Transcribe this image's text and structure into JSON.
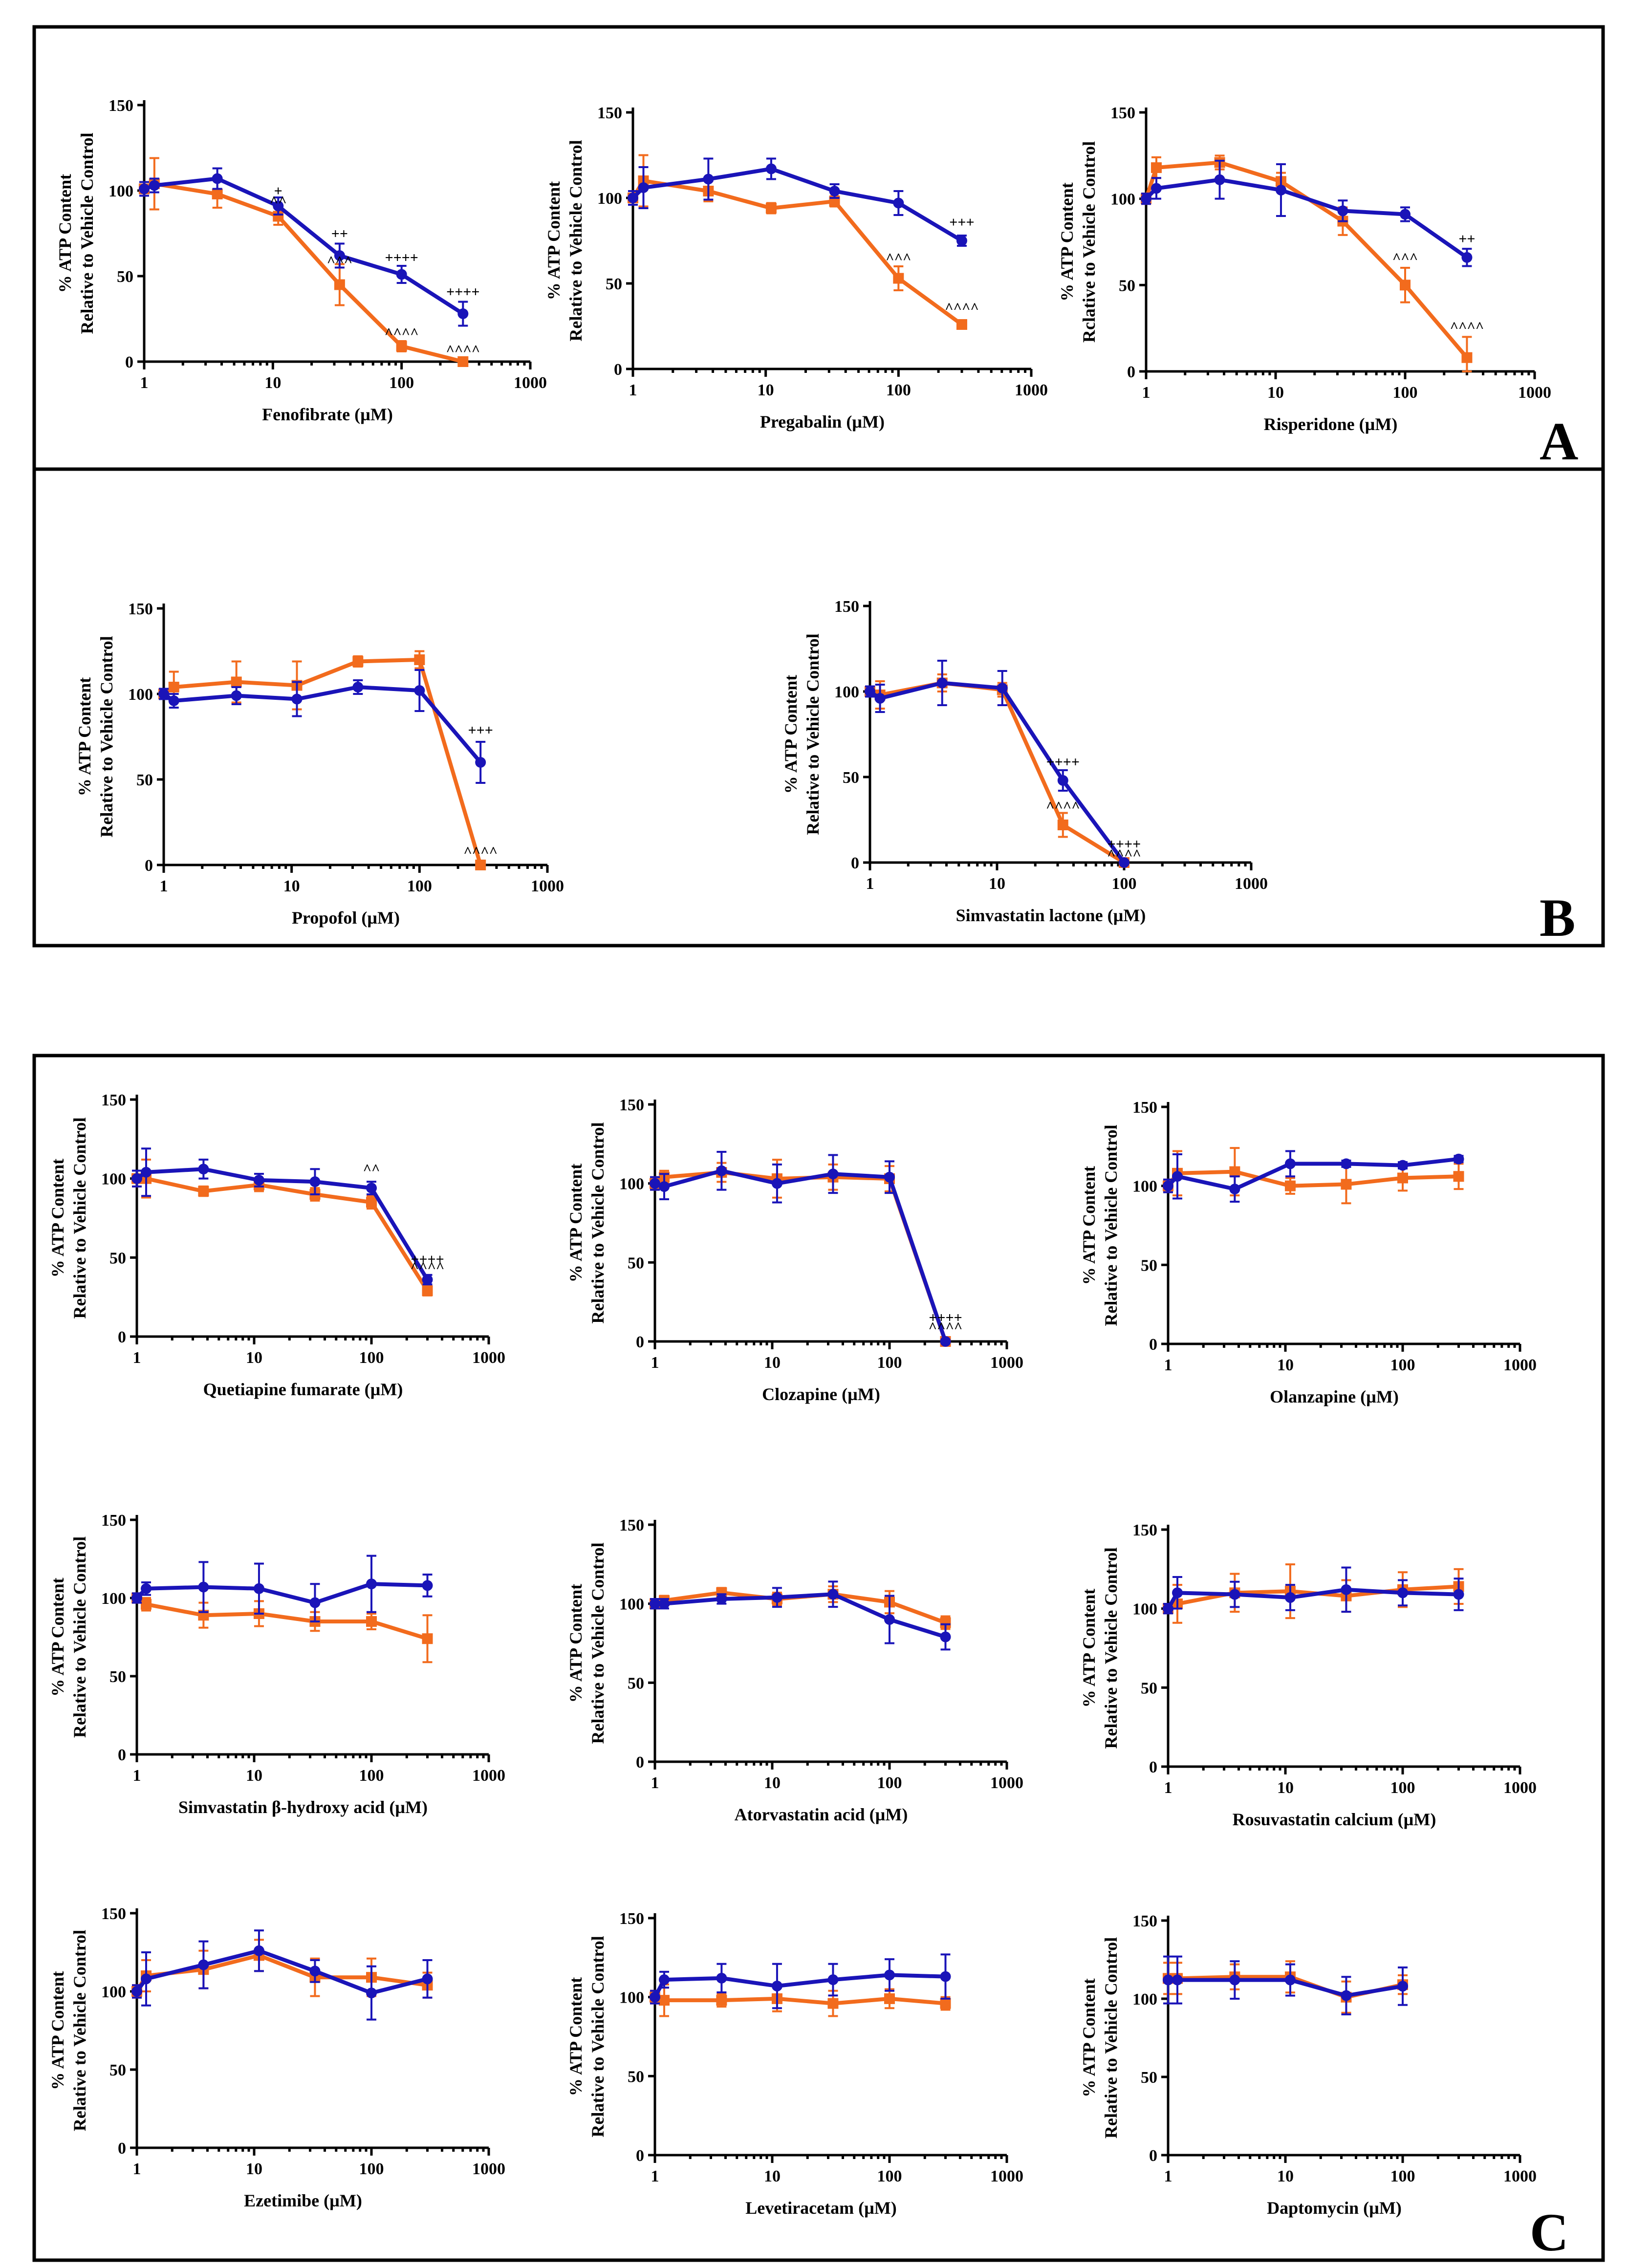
{
  "colors": {
    "blue": "#1a14b8",
    "orange": "#f26b1d",
    "frame": "#000000"
  },
  "panel_labels": {
    "A": "A",
    "B": "B",
    "C": "C"
  },
  "ylabel_line1": "% ATP Content",
  "ylabel_line2": "Relative to Vehicle Control",
  "ylabel_line2_alt": "Rclative to Vehicle Control",
  "chart_data": [
    {
      "type": "line",
      "xscale": "log",
      "xlim": [
        1,
        1000
      ],
      "ylim": [
        0,
        150
      ],
      "yticks": [
        0,
        50,
        100,
        150
      ],
      "xticks": [
        1,
        10,
        100,
        1000
      ],
      "xlabel": "Fenofibrate (µM)",
      "ylabel": "% ATP Content Relative to Vehicle Control",
      "x": [
        1,
        1.2,
        3.7,
        11,
        33,
        100,
        300
      ],
      "series": [
        {
          "name": "blue",
          "values": [
            101,
            103,
            107,
            91,
            62,
            51,
            28
          ],
          "errors": [
            4,
            4,
            6,
            5,
            7,
            5,
            7
          ]
        },
        {
          "name": "orange",
          "values": [
            101,
            104,
            98,
            85,
            45,
            9,
            0
          ],
          "errors": [
            4,
            15,
            8,
            5,
            12,
            3,
            1
          ]
        }
      ],
      "annotations": [
        {
          "x": 11,
          "y": 97,
          "text": "+"
        },
        {
          "x": 11,
          "y": 91,
          "text": "^^"
        },
        {
          "x": 33,
          "y": 72,
          "text": "++"
        },
        {
          "x": 33,
          "y": 56,
          "text": "^^^"
        },
        {
          "x": 100,
          "y": 58,
          "text": "++++"
        },
        {
          "x": 100,
          "y": 14,
          "text": "^^^^"
        },
        {
          "x": 300,
          "y": 38,
          "text": "++++"
        },
        {
          "x": 300,
          "y": 4,
          "text": "^^^^"
        }
      ]
    },
    {
      "type": "line",
      "xscale": "log",
      "xlim": [
        1,
        1000
      ],
      "ylim": [
        0,
        150
      ],
      "yticks": [
        0,
        50,
        100,
        150
      ],
      "xticks": [
        1,
        10,
        100,
        1000
      ],
      "xlabel": "Pregabalin (µM)",
      "ylabel": "% ATP Content Relative to Vehicle Control",
      "x": [
        1,
        1.2,
        3.7,
        11,
        33,
        100,
        300
      ],
      "series": [
        {
          "name": "blue",
          "values": [
            100,
            106,
            111,
            117,
            104,
            97,
            75
          ],
          "errors": [
            4,
            12,
            12,
            6,
            4,
            7,
            3
          ]
        },
        {
          "name": "orange",
          "values": [
            100,
            110,
            104,
            94,
            98,
            53,
            26
          ],
          "errors": [
            4,
            15,
            6,
            3,
            3,
            7,
            2
          ]
        }
      ],
      "annotations": [
        {
          "x": 300,
          "y": 83,
          "text": "+++"
        },
        {
          "x": 100,
          "y": 62,
          "text": "^^^"
        },
        {
          "x": 300,
          "y": 33,
          "text": "^^^^"
        }
      ]
    },
    {
      "type": "line",
      "xscale": "log",
      "xlim": [
        1,
        1000
      ],
      "ylim": [
        0,
        150
      ],
      "yticks": [
        0,
        50,
        100,
        150
      ],
      "xticks": [
        1,
        10,
        100,
        1000
      ],
      "xlabel": "Risperidone (µM)",
      "ylabel": "% ATP Content Relative to Vehicle Control",
      "x": [
        1,
        1.2,
        3.7,
        11,
        33,
        100,
        300
      ],
      "series": [
        {
          "name": "blue",
          "values": [
            100,
            106,
            111,
            105,
            93,
            91,
            66
          ],
          "errors": [
            3,
            6,
            11,
            15,
            6,
            4,
            5
          ]
        },
        {
          "name": "orange",
          "values": [
            100,
            118,
            121,
            110,
            87,
            50,
            8
          ],
          "errors": [
            3,
            6,
            4,
            5,
            8,
            10,
            12
          ]
        }
      ],
      "annotations": [
        {
          "x": 300,
          "y": 74,
          "text": "++"
        },
        {
          "x": 100,
          "y": 63,
          "text": "^^^"
        },
        {
          "x": 300,
          "y": 23,
          "text": "^^^^"
        }
      ]
    },
    {
      "type": "line",
      "xscale": "log",
      "xlim": [
        1,
        1000
      ],
      "ylim": [
        0,
        150
      ],
      "yticks": [
        0,
        50,
        100,
        150
      ],
      "xticks": [
        1,
        10,
        100,
        1000
      ],
      "xlabel": "Propofol (µM)",
      "ylabel": "% ATP Content Relative to Vehicle Control",
      "x": [
        1,
        1.2,
        3.7,
        11,
        33,
        100,
        300
      ],
      "series": [
        {
          "name": "blue",
          "values": [
            100,
            96,
            99,
            97,
            104,
            102,
            60
          ],
          "errors": [
            3,
            4,
            5,
            10,
            4,
            12,
            12
          ]
        },
        {
          "name": "orange",
          "values": [
            100,
            104,
            107,
            105,
            119,
            120,
            0
          ],
          "errors": [
            3,
            9,
            12,
            14,
            3,
            5,
            1
          ]
        }
      ],
      "annotations": [
        {
          "x": 300,
          "y": 76,
          "text": "+++"
        },
        {
          "x": 300,
          "y": 5,
          "text": "^^^^"
        }
      ]
    },
    {
      "type": "line",
      "xscale": "log",
      "xlim": [
        1,
        1000
      ],
      "ylim": [
        0,
        150
      ],
      "yticks": [
        0,
        50,
        100,
        150
      ],
      "xticks": [
        1,
        10,
        100,
        1000
      ],
      "xlabel": "Simvastatin lactone (µM)",
      "ylabel": "% ATP Content Relative to Vehicle Control",
      "x": [
        1,
        1.2,
        3.7,
        11,
        33,
        100
      ],
      "series": [
        {
          "name": "blue",
          "values": [
            100,
            96,
            105,
            102,
            48,
            0
          ],
          "errors": [
            3,
            8,
            13,
            10,
            6,
            1
          ]
        },
        {
          "name": "orange",
          "values": [
            100,
            98,
            105,
            101,
            22,
            0
          ],
          "errors": [
            3,
            8,
            5,
            4,
            7,
            1
          ]
        }
      ],
      "annotations": [
        {
          "x": 33,
          "y": 56,
          "text": "++++"
        },
        {
          "x": 33,
          "y": 30,
          "text": "^^^^"
        },
        {
          "x": 100,
          "y": 8,
          "text": "++++"
        },
        {
          "x": 100,
          "y": 2,
          "text": "^^^^"
        }
      ]
    },
    {
      "type": "line",
      "xscale": "log",
      "xlim": [
        1,
        1000
      ],
      "ylim": [
        0,
        150
      ],
      "yticks": [
        0,
        50,
        100,
        150
      ],
      "xticks": [
        1,
        10,
        100,
        1000
      ],
      "xlabel": "Quetiapine fumarate (µM)",
      "ylabel": "% ATP Content Relative to Vehicle Control",
      "x": [
        1,
        1.2,
        3.7,
        11,
        33,
        100,
        300
      ],
      "series": [
        {
          "name": "blue",
          "values": [
            100,
            104,
            106,
            99,
            98,
            94,
            36
          ],
          "errors": [
            5,
            15,
            6,
            4,
            8,
            4,
            3
          ]
        },
        {
          "name": "orange",
          "values": [
            100,
            100,
            92,
            96,
            90,
            85,
            29
          ],
          "errors": [
            5,
            12,
            3,
            4,
            4,
            4,
            3
          ]
        }
      ],
      "annotations": [
        {
          "x": 100,
          "y": 103,
          "text": "^^"
        },
        {
          "x": 300,
          "y": 46,
          "text": "++++"
        },
        {
          "x": 300,
          "y": 41,
          "text": "^^^^"
        }
      ]
    },
    {
      "type": "line",
      "xscale": "log",
      "xlim": [
        1,
        1000
      ],
      "ylim": [
        0,
        150
      ],
      "yticks": [
        0,
        50,
        100,
        150
      ],
      "xticks": [
        1,
        10,
        100,
        1000
      ],
      "xlabel": "Clozapine (µM)",
      "ylabel": "% ATP Content Relative to Vehicle Control",
      "x": [
        1,
        1.2,
        3.7,
        11,
        33,
        100,
        300
      ],
      "series": [
        {
          "name": "blue",
          "values": [
            100,
            98,
            108,
            100,
            106,
            104,
            0
          ],
          "errors": [
            4,
            8,
            12,
            12,
            12,
            10,
            1
          ]
        },
        {
          "name": "orange",
          "values": [
            100,
            104,
            107,
            103,
            104,
            103,
            0
          ],
          "errors": [
            4,
            4,
            6,
            12,
            8,
            8,
            1
          ]
        }
      ],
      "annotations": [
        {
          "x": 300,
          "y": 12,
          "text": "++++"
        },
        {
          "x": 300,
          "y": 6,
          "text": "^^^^"
        }
      ]
    },
    {
      "type": "line",
      "xscale": "log",
      "xlim": [
        1,
        1000
      ],
      "ylim": [
        0,
        150
      ],
      "yticks": [
        0,
        50,
        100,
        150
      ],
      "xticks": [
        1,
        10,
        100,
        1000
      ],
      "xlabel": "Olanzapine (µM)",
      "ylabel": "% ATP Content Relative to Vehicle Control",
      "x": [
        1,
        1.2,
        3.7,
        11,
        33,
        100,
        300
      ],
      "series": [
        {
          "name": "blue",
          "values": [
            100,
            106,
            98,
            114,
            114,
            113,
            117
          ],
          "errors": [
            4,
            14,
            8,
            8,
            2,
            2,
            2
          ]
        },
        {
          "name": "orange",
          "values": [
            100,
            108,
            109,
            100,
            101,
            105,
            106
          ],
          "errors": [
            4,
            14,
            15,
            5,
            12,
            8,
            8
          ]
        }
      ],
      "annotations": []
    },
    {
      "type": "line",
      "xscale": "log",
      "xlim": [
        1,
        1000
      ],
      "ylim": [
        0,
        150
      ],
      "yticks": [
        0,
        50,
        100,
        150
      ],
      "xticks": [
        1,
        10,
        100,
        1000
      ],
      "xlabel": "Simvastatin β-hydroxy acid (µM)",
      "ylabel": "% ATP Content Relative to Vehicle Control",
      "x": [
        1,
        1.2,
        3.7,
        11,
        33,
        100,
        300
      ],
      "series": [
        {
          "name": "blue",
          "values": [
            100,
            106,
            107,
            106,
            97,
            109,
            108
          ],
          "errors": [
            3,
            4,
            16,
            16,
            12,
            18,
            7
          ]
        },
        {
          "name": "orange",
          "values": [
            100,
            96,
            89,
            90,
            85,
            85,
            74
          ],
          "errors": [
            3,
            4,
            8,
            8,
            6,
            5,
            15
          ]
        }
      ],
      "annotations": []
    },
    {
      "type": "line",
      "xscale": "log",
      "xlim": [
        1,
        1000
      ],
      "ylim": [
        0,
        150
      ],
      "yticks": [
        0,
        50,
        100,
        150
      ],
      "xticks": [
        1,
        10,
        100,
        1000
      ],
      "xlabel": "Atorvastatin acid (µM)",
      "ylabel": "% ATP Content Relative to Vehicle Control",
      "x": [
        1,
        1.2,
        3.7,
        11,
        33,
        100,
        300
      ],
      "series": [
        {
          "name": "blue",
          "values": [
            100,
            100,
            103,
            104,
            106,
            90,
            79
          ],
          "errors": [
            3,
            3,
            3,
            6,
            8,
            15,
            8
          ]
        },
        {
          "name": "orange",
          "values": [
            100,
            102,
            107,
            103,
            106,
            101,
            88
          ],
          "errors": [
            3,
            3,
            3,
            4,
            5,
            7,
            4
          ]
        }
      ],
      "annotations": []
    },
    {
      "type": "line",
      "xscale": "log",
      "xlim": [
        1,
        1000
      ],
      "ylim": [
        0,
        150
      ],
      "yticks": [
        0,
        50,
        100,
        150
      ],
      "xticks": [
        1,
        10,
        100,
        1000
      ],
      "xlabel": "Rosuvastatin calcium (µM)",
      "ylabel": "% ATP Content Relative to Vehicle Control",
      "x": [
        1,
        1.2,
        3.7,
        11,
        33,
        100,
        300
      ],
      "series": [
        {
          "name": "blue",
          "values": [
            100,
            110,
            109,
            107,
            112,
            110,
            109
          ],
          "errors": [
            3,
            10,
            8,
            8,
            14,
            8,
            10
          ]
        },
        {
          "name": "orange",
          "values": [
            100,
            103,
            110,
            111,
            108,
            112,
            114
          ],
          "errors": [
            3,
            12,
            12,
            17,
            10,
            11,
            11
          ]
        }
      ],
      "annotations": []
    },
    {
      "type": "line",
      "xscale": "log",
      "xlim": [
        1,
        1000
      ],
      "ylim": [
        0,
        150
      ],
      "yticks": [
        0,
        50,
        100,
        150
      ],
      "xticks": [
        1,
        10,
        100,
        1000
      ],
      "xlabel": "Ezetimibe (µM)",
      "ylabel": "% ATP Content Relative to Vehicle Control",
      "x": [
        1,
        1.2,
        3.7,
        11,
        33,
        100,
        300
      ],
      "series": [
        {
          "name": "blue",
          "values": [
            100,
            108,
            117,
            126,
            113,
            99,
            108
          ],
          "errors": [
            4,
            17,
            15,
            13,
            7,
            17,
            12
          ]
        },
        {
          "name": "orange",
          "values": [
            100,
            110,
            114,
            123,
            109,
            109,
            104
          ],
          "errors": [
            4,
            10,
            12,
            10,
            12,
            12,
            8
          ]
        }
      ],
      "annotations": []
    },
    {
      "type": "line",
      "xscale": "log",
      "xlim": [
        1,
        1000
      ],
      "ylim": [
        0,
        150
      ],
      "yticks": [
        0,
        50,
        100,
        150
      ],
      "xticks": [
        1,
        10,
        100,
        1000
      ],
      "xlabel": "Levetiracetam (µM)",
      "ylabel": "% ATP Content Relative to Vehicle Control",
      "x": [
        1,
        1.2,
        3.7,
        11,
        33,
        100,
        300
      ],
      "series": [
        {
          "name": "blue",
          "values": [
            100,
            111,
            112,
            107,
            111,
            114,
            113
          ],
          "errors": [
            4,
            5,
            9,
            14,
            10,
            10,
            14
          ]
        },
        {
          "name": "orange",
          "values": [
            100,
            98,
            98,
            99,
            96,
            99,
            96
          ],
          "errors": [
            4,
            10,
            4,
            8,
            8,
            6,
            4
          ]
        }
      ],
      "annotations": []
    },
    {
      "type": "line",
      "xscale": "log",
      "xlim": [
        1,
        1000
      ],
      "ylim": [
        0,
        150
      ],
      "yticks": [
        0,
        50,
        100,
        150
      ],
      "xticks": [
        1,
        10,
        100,
        1000
      ],
      "xlabel": "Daptomycin (µM)",
      "ylabel": "% ATP Content Relative to Vehicle Control",
      "x": [
        1,
        1.2,
        3.7,
        11,
        33,
        100
      ],
      "series": [
        {
          "name": "blue",
          "values": [
            112,
            112,
            112,
            112,
            102,
            108
          ],
          "errors": [
            15,
            15,
            12,
            10,
            12,
            12
          ]
        },
        {
          "name": "orange",
          "values": [
            113,
            113,
            114,
            114,
            101,
            109
          ],
          "errors": [
            10,
            10,
            8,
            10,
            10,
            6
          ]
        }
      ],
      "annotations": []
    }
  ]
}
